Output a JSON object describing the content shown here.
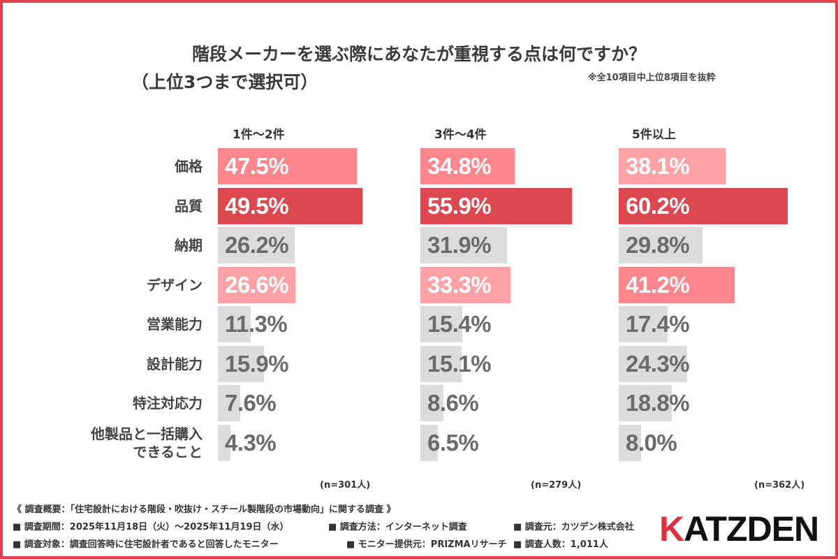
{
  "title": "階段メーカーを選ぶ際にあなたが重視する点は何ですか？",
  "subtitle": "（上位3つまで選択可）",
  "note": "※全10項目中上位8項目を抜粋",
  "colors": {
    "frame": "#e0434d",
    "rank1": "#dc4750",
    "rank2": "#fd868c",
    "rank3": "#fea2a6",
    "other": "#dcdcdc",
    "other_text": "#6b6b6b"
  },
  "chart_data": {
    "type": "bar",
    "orientation": "horizontal",
    "categories": [
      "価格",
      "品質",
      "納期",
      "デザイン",
      "営業能力",
      "設計能力",
      "特注対応力",
      "他製品と一括購入できること"
    ],
    "category_lines": [
      [
        "価格"
      ],
      [
        "品質"
      ],
      [
        "納期"
      ],
      [
        "デザイン"
      ],
      [
        "営業能力"
      ],
      [
        "設計能力"
      ],
      [
        "特注対応力"
      ],
      [
        "他製品と一括購入",
        "できること"
      ]
    ],
    "unit": "%",
    "series": [
      {
        "name": "1件～2件",
        "n": "(n=301人)",
        "values": [
          47.5,
          49.5,
          26.2,
          26.6,
          11.3,
          15.9,
          7.6,
          4.3
        ],
        "ranks": [
          2,
          1,
          0,
          3,
          0,
          0,
          0,
          0
        ]
      },
      {
        "name": "3件～4件",
        "n": "(n=279人)",
        "values": [
          34.8,
          55.9,
          31.9,
          33.3,
          15.4,
          15.1,
          8.6,
          6.5
        ],
        "ranks": [
          2,
          1,
          0,
          3,
          0,
          0,
          0,
          0
        ]
      },
      {
        "name": "5件以上",
        "n": "(n=362人)",
        "values": [
          38.1,
          60.2,
          29.8,
          41.2,
          17.4,
          24.3,
          18.8,
          8.0
        ],
        "ranks": [
          3,
          1,
          0,
          2,
          0,
          0,
          0,
          0
        ]
      }
    ]
  },
  "footer": {
    "line1": "《 調査概要：「住宅設計における階段・吹抜け・スチール製階段の市場動向」に関する調査 》",
    "period": "■ 調査期間：2025年11月18日（火）～2025年11月19日（水）",
    "method": "■ 調査方法：インターネット調査",
    "source": "■ 調査元：カツデン株式会社",
    "target": "■ 調査対象：調査回答時に住宅設計者であると回答したモニター",
    "provider": "■ モニター提供元：PRIZMAリサーチ",
    "count": "■ 調査人数：1,011人"
  },
  "logo": {
    "text": "KATZDEN",
    "first": "K",
    "rest": "ATZDEN"
  }
}
